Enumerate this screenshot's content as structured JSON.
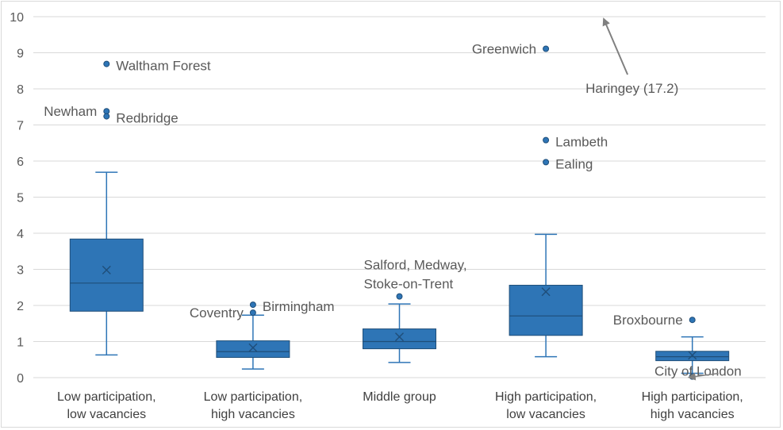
{
  "chart_data": {
    "type": "boxplot",
    "ylim": [
      0,
      10
    ],
    "yticks": [
      0,
      1,
      2,
      3,
      4,
      5,
      6,
      7,
      8,
      9,
      10
    ],
    "grid": true,
    "colors": {
      "box": "#2e75b6",
      "box_edge": "#1f4e79",
      "annotation_arrow": "#808080"
    },
    "categories": [
      {
        "label": [
          "Low participation,",
          "low vacancies"
        ],
        "whisker_low": 0.63,
        "q1": 1.84,
        "median": 2.62,
        "q3": 3.84,
        "whisker_high": 5.69,
        "mean": 2.98,
        "outliers": [
          8.69,
          7.38,
          7.24
        ]
      },
      {
        "label": [
          "Low participation,",
          "high vacancies"
        ],
        "whisker_low": 0.24,
        "q1": 0.56,
        "median": 0.72,
        "q3": 1.02,
        "whisker_high": 1.73,
        "mean": 0.83,
        "outliers": [
          2.02,
          1.8
        ]
      },
      {
        "label": [
          "Middle group"
        ],
        "whisker_low": 0.42,
        "q1": 0.8,
        "median": 1.0,
        "q3": 1.35,
        "whisker_high": 2.04,
        "mean": 1.13,
        "outliers": [
          2.25
        ]
      },
      {
        "label": [
          "High participation,",
          "low vacancies"
        ],
        "whisker_low": 0.58,
        "q1": 1.17,
        "median": 1.71,
        "q3": 2.56,
        "whisker_high": 3.97,
        "mean": 2.38,
        "outliers": [
          9.11,
          6.58,
          5.97
        ]
      },
      {
        "label": [
          "High participation,",
          "high vacancies"
        ],
        "whisker_low": 0.12,
        "q1": 0.47,
        "median": 0.58,
        "q3": 0.73,
        "whisker_high": 1.13,
        "mean": 0.62,
        "outliers": [
          1.6,
          0.03
        ]
      }
    ],
    "annotations": [
      {
        "text": [
          "Waltham Forest"
        ],
        "category": 0,
        "value": 8.69,
        "side": "right"
      },
      {
        "text": [
          "Newham"
        ],
        "category": 0,
        "value": 7.38,
        "side": "left"
      },
      {
        "text": [
          "Redbridge"
        ],
        "category": 0,
        "value": 7.24,
        "side": "right"
      },
      {
        "text": [
          "Coventry"
        ],
        "category": 1,
        "value": 1.8,
        "side": "left"
      },
      {
        "text": [
          "Birmingham"
        ],
        "category": 1,
        "value": 2.02,
        "side": "right"
      },
      {
        "text": [
          "Salford, Medway,",
          "Stoke-on-Trent"
        ],
        "category": 2,
        "value": 2.25,
        "side": "right-above"
      },
      {
        "text": [
          "Greenwich"
        ],
        "category": 3,
        "value": 9.11,
        "side": "left"
      },
      {
        "text": [
          "Lambeth"
        ],
        "category": 3,
        "value": 6.58,
        "side": "right"
      },
      {
        "text": [
          "Ealing"
        ],
        "category": 3,
        "value": 5.97,
        "side": "right"
      },
      {
        "text": [
          "Haringey (17.2)"
        ],
        "category": 3,
        "value": 17.2,
        "side": "off-scale-arrow"
      },
      {
        "text": [
          "Broxbourne"
        ],
        "category": 4,
        "value": 1.6,
        "side": "left"
      },
      {
        "text": [
          "City of London"
        ],
        "category": 4,
        "value": 0.03,
        "side": "left-arrow"
      }
    ]
  }
}
